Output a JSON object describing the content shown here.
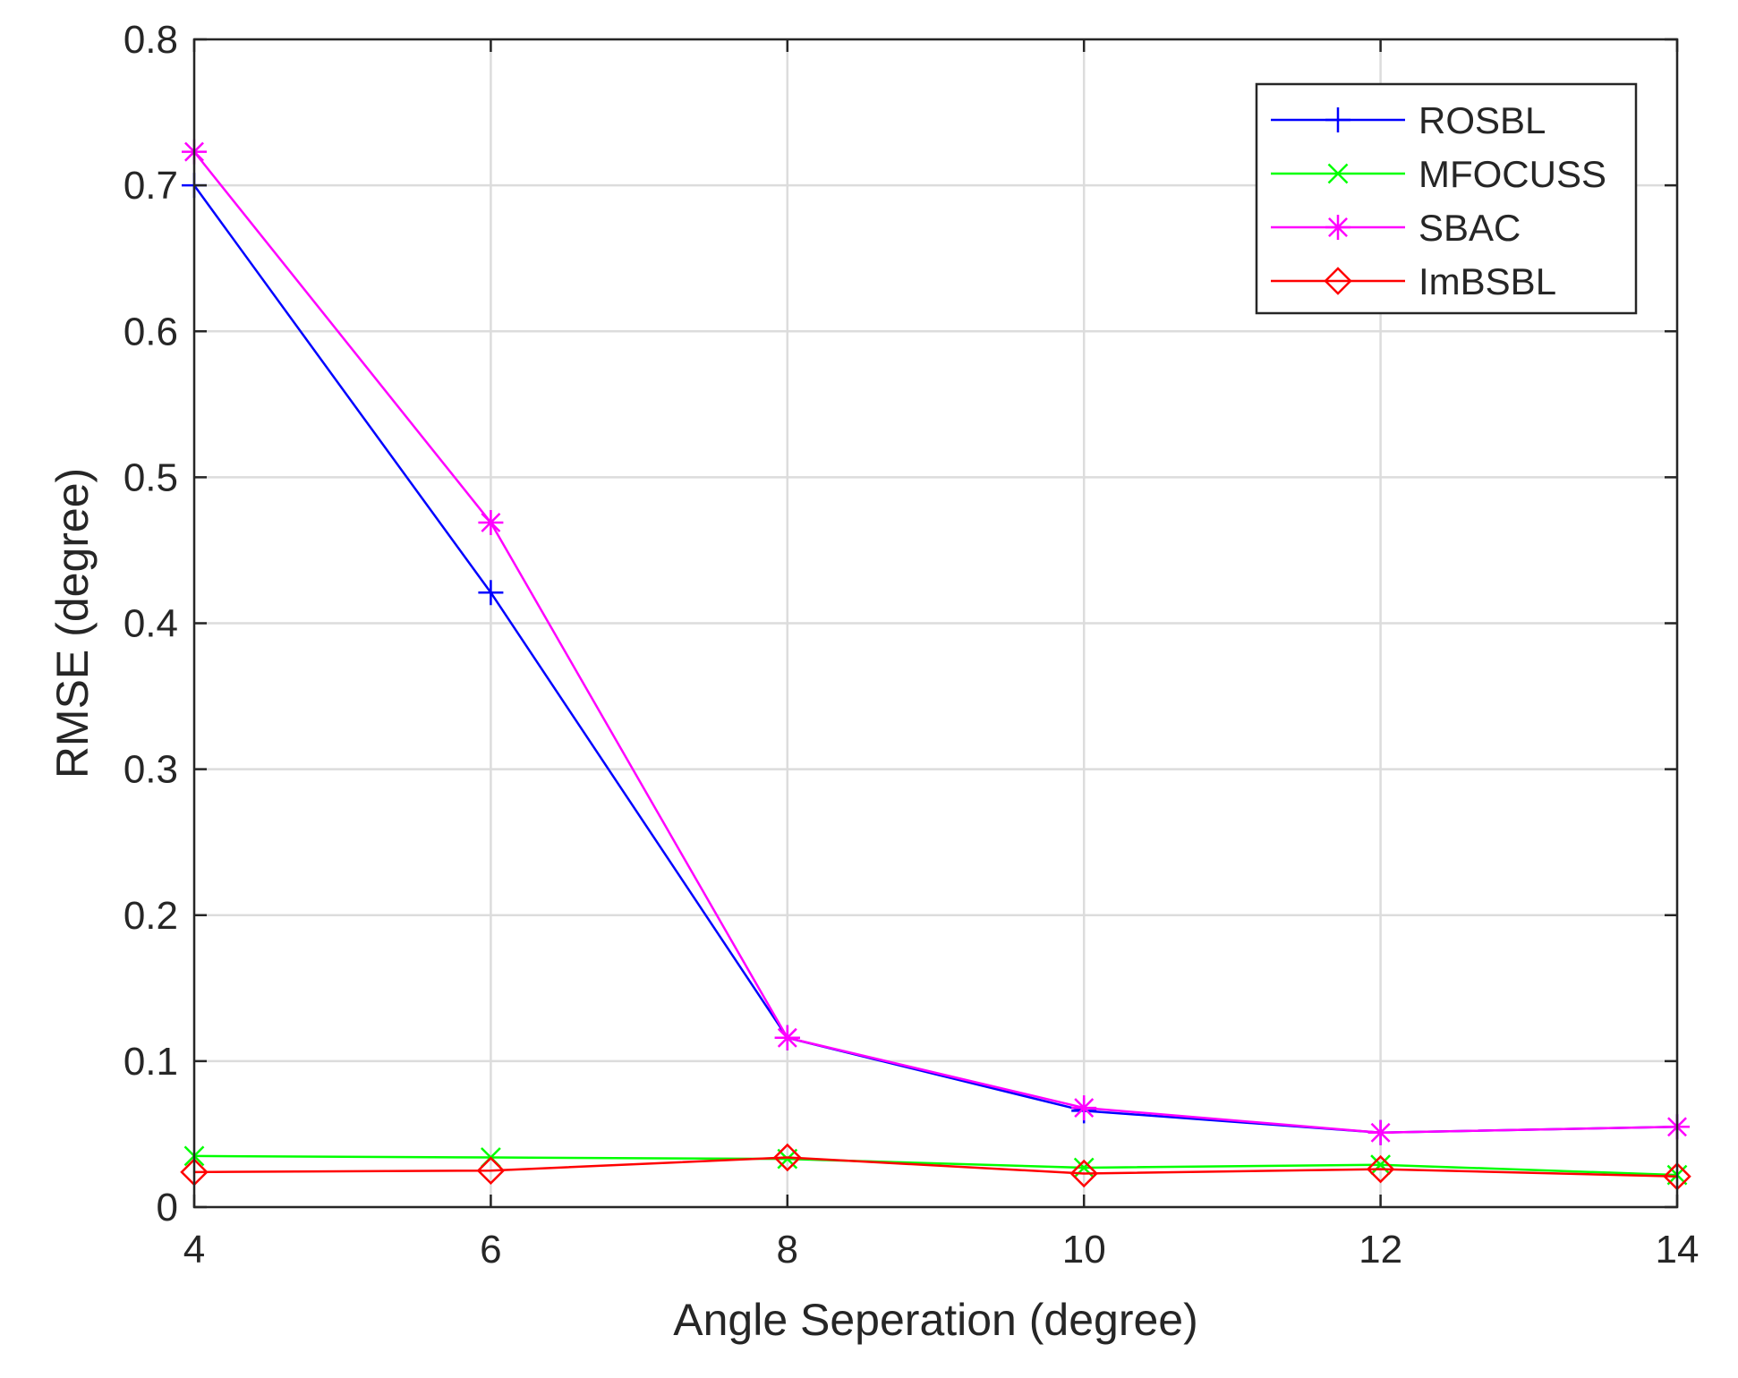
{
  "chart_data": {
    "type": "line",
    "title": "",
    "xlabel": "Angle Seperation (degree)",
    "ylabel": "RMSE (degree)",
    "xlim": [
      4,
      14
    ],
    "ylim": [
      0,
      0.8
    ],
    "xticks": [
      4,
      6,
      8,
      10,
      12,
      14
    ],
    "xtick_labels": [
      "4",
      "6",
      "8",
      "10",
      "12",
      "14"
    ],
    "yticks": [
      0,
      0.1,
      0.2,
      0.3,
      0.4,
      0.5,
      0.6,
      0.7,
      0.8
    ],
    "ytick_labels": [
      "0",
      "0.1",
      "0.2",
      "0.3",
      "0.4",
      "0.5",
      "0.6",
      "0.7",
      "0.8"
    ],
    "grid": true,
    "legend_position": "top-right",
    "x": [
      4,
      6,
      8,
      10,
      12,
      14
    ],
    "series": [
      {
        "name": "ROSBL",
        "marker": "plus",
        "color": "#0000ff",
        "values": [
          0.7,
          0.421,
          0.116,
          0.066,
          0.051,
          0.055
        ]
      },
      {
        "name": "MFOCUSS",
        "marker": "x",
        "color": "#00ff00",
        "values": [
          0.035,
          0.034,
          0.033,
          0.027,
          0.029,
          0.022
        ]
      },
      {
        "name": "SBAC",
        "marker": "star",
        "color": "#ff00ff",
        "values": [
          0.723,
          0.469,
          0.116,
          0.068,
          0.051,
          0.055
        ]
      },
      {
        "name": "ImBSBL",
        "marker": "diamond",
        "color": "#ff0000",
        "values": [
          0.024,
          0.025,
          0.034,
          0.023,
          0.026,
          0.021
        ]
      }
    ]
  }
}
